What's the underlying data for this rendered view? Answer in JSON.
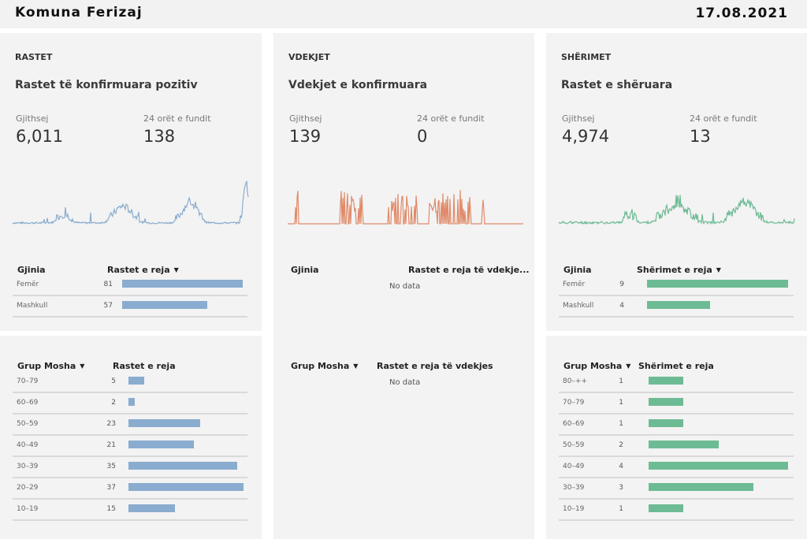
{
  "header": {
    "title": "Komuna Ferizaj",
    "date": "17.08.2021"
  },
  "colors": {
    "rastet": "#8aaccf",
    "vdekjet": "#e08a69",
    "sherimet": "#6dbb94"
  },
  "rastet": {
    "kicker": "RASTET",
    "subtitle": "Rastet të konfirmuara pozitiv",
    "total_label": "Gjithsej",
    "total": "6,011",
    "last24_label": "24 orët e fundit",
    "last24": "138",
    "gender_table": {
      "col1": "Gjinia",
      "col2": "Rastet e reja",
      "rows": [
        {
          "label": "Femër",
          "value": 81
        },
        {
          "label": "Mashkull",
          "value": 57
        }
      ]
    },
    "age_table": {
      "col1": "Grup Mosha",
      "col2": "Rastet e reja",
      "rows": [
        {
          "label": "70–79",
          "value": 5
        },
        {
          "label": "60–69",
          "value": 2
        },
        {
          "label": "50–59",
          "value": 23
        },
        {
          "label": "40–49",
          "value": 21
        },
        {
          "label": "30–39",
          "value": 35
        },
        {
          "label": "20–29",
          "value": 37
        },
        {
          "label": "10–19",
          "value": 15
        }
      ]
    }
  },
  "vdekjet": {
    "kicker": "VDEKJET",
    "subtitle": "Vdekjet e konfirmuara",
    "total_label": "Gjithsej",
    "total": "139",
    "last24_label": "24 orët e fundit",
    "last24": "0",
    "gender_table": {
      "col1": "Gjinia",
      "col2": "Rastet e reja të vdekje...",
      "empty": "No data"
    },
    "age_table": {
      "col1": "Grup Mosha",
      "col2": "Rastet e reja të vdekjes",
      "empty": "No data"
    }
  },
  "sherimet": {
    "kicker": "SHËRIMET",
    "subtitle": "Rastet e shëruara",
    "total_label": "Gjithsej",
    "total": "4,974",
    "last24_label": "24 orët e fundit",
    "last24": "13",
    "gender_table": {
      "col1": "Gjinia",
      "col2": "Shërimet e reja",
      "rows": [
        {
          "label": "Femër",
          "value": 9
        },
        {
          "label": "Mashkull",
          "value": 4
        }
      ]
    },
    "age_table": {
      "col1": "Grup Mosha",
      "col2": "Shërimet e reja",
      "rows": [
        {
          "label": "80–++",
          "value": 1
        },
        {
          "label": "70–79",
          "value": 1
        },
        {
          "label": "60–69",
          "value": 1
        },
        {
          "label": "50–59",
          "value": 2
        },
        {
          "label": "40–49",
          "value": 4
        },
        {
          "label": "30–39",
          "value": 3
        },
        {
          "label": "10–19",
          "value": 1
        }
      ]
    }
  }
}
